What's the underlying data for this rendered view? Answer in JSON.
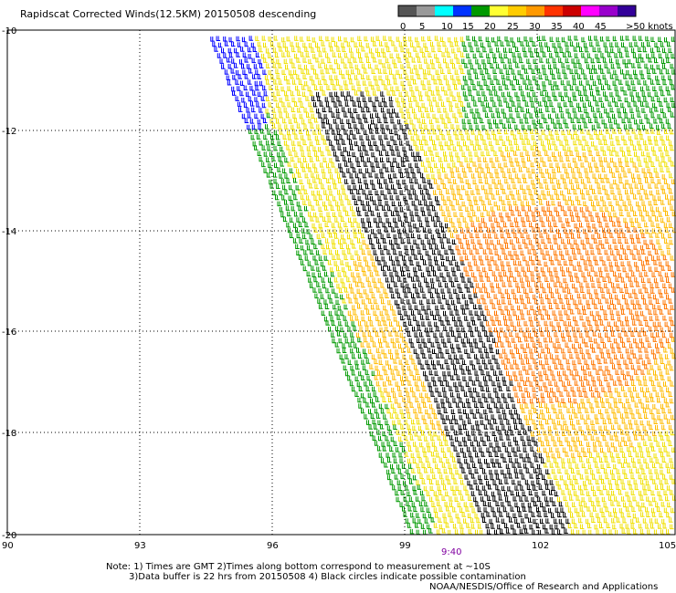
{
  "title": "Rapidscat Corrected Winds(12.5KM) 20150508 descending",
  "legend": {
    "labels": [
      "0",
      "5",
      "10",
      "15",
      "20",
      "25",
      "30",
      "35",
      "40",
      "45",
      ">50 knots"
    ],
    "colors": [
      "#555555",
      "#999999",
      "#00ffff",
      "#0033ff",
      "#009900",
      "#ffff33",
      "#ffcc00",
      "#ff9900",
      "#ff3300",
      "#cc0000",
      "#ff00ff",
      "#9900cc",
      "#330099"
    ]
  },
  "map": {
    "lat_labels": [
      "-10",
      "-12",
      "-14",
      "-16",
      "-18",
      "-20"
    ],
    "lon_labels": [
      "90",
      "93",
      "96",
      "99",
      "102",
      "105"
    ],
    "time_label": "9:40",
    "barb_colors": {
      "black": "#000000",
      "blue": "#0000ff",
      "green": "#009900",
      "yellow": "#f0e000",
      "gold": "#ffbb00",
      "orange": "#ff7700",
      "red": "#dd2200"
    }
  },
  "notes": {
    "line1": "Note: 1) Times are GMT 2)Times along bottom correspond to measurement at ~10S",
    "line2": "3)Data buffer is 22 hrs from 20150508 4) Black circles indicate possible contamination",
    "credit": "NOAA/NESDIS/Office of Research and Applications"
  }
}
